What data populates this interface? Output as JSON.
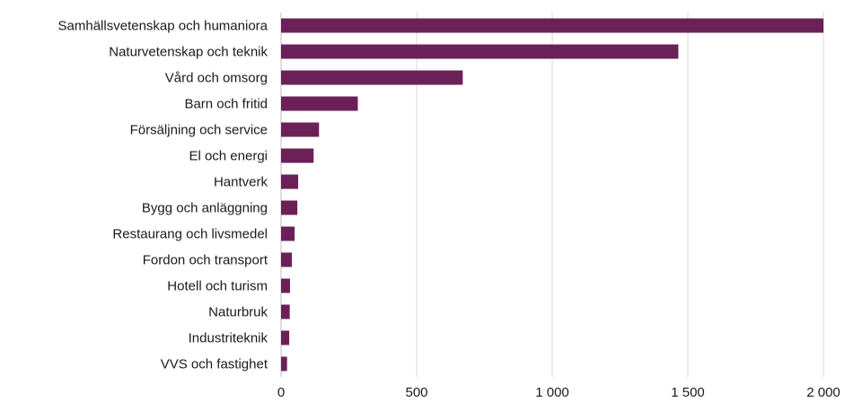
{
  "chart_data": {
    "type": "bar",
    "orientation": "horizontal",
    "categories": [
      "Samhällsvetenskap och humaniora",
      "Naturvetenskap och teknik",
      "Vård och omsorg",
      "Barn och fritid",
      "Försäljning och service",
      "El och energi",
      "Hantverk",
      "Bygg och anläggning",
      "Restaurang och livsmedel",
      "Fordon och transport",
      "Hotell och turism",
      "Naturbruk",
      "Industriteknik",
      "VVS och fastighet"
    ],
    "values": [
      2010,
      1465,
      670,
      283,
      140,
      120,
      63,
      60,
      50,
      40,
      33,
      32,
      30,
      22
    ],
    "xlim": [
      0,
      2000
    ],
    "xticks": [
      0,
      500,
      1000,
      1500,
      2000
    ],
    "xtick_labels": [
      "0",
      "500",
      "1 000",
      "1 500",
      "2 000"
    ],
    "grid": "vertical",
    "legend": "none",
    "bar_color": "#6b2157"
  }
}
